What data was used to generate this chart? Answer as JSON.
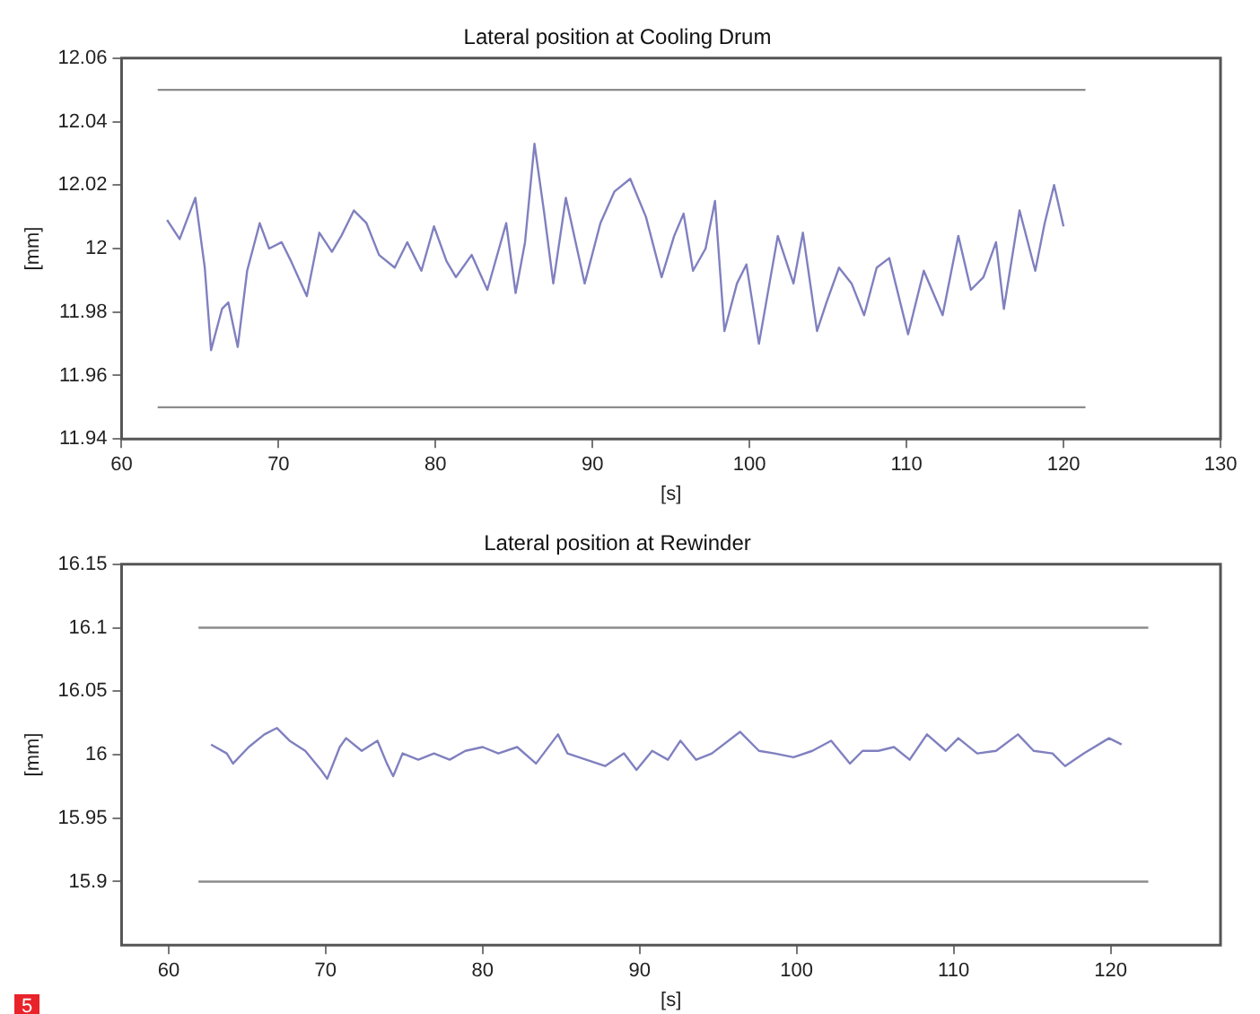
{
  "chart_data": [
    {
      "type": "line",
      "title": "Lateral position at Cooling Drum",
      "xlabel": "[s]",
      "ylabel": "[mm]",
      "xlim": [
        60,
        130
      ],
      "xticks": [
        60,
        70,
        80,
        90,
        100,
        110,
        120,
        130
      ],
      "ylim": [
        11.94,
        12.06
      ],
      "yticks": [
        11.94,
        11.96,
        11.98,
        12,
        12.02,
        12.04,
        12.06
      ],
      "grid": false,
      "legend": false,
      "marker": "none",
      "line_style": "solid",
      "series": [
        {
          "color": "#8080c0",
          "x": [
            62.9,
            63.7,
            64.7,
            65.3,
            65.7,
            66.4,
            66.8,
            67.4,
            68.0,
            68.8,
            69.4,
            70.2,
            70.8,
            71.8,
            72.6,
            73.4,
            74.0,
            74.8,
            75.6,
            76.4,
            77.4,
            78.2,
            79.1,
            79.9,
            80.7,
            81.3,
            82.3,
            83.3,
            84.5,
            85.1,
            85.7,
            86.3,
            86.9,
            87.5,
            88.3,
            89.5,
            90.5,
            91.4,
            92.4,
            93.4,
            94.4,
            95.2,
            95.8,
            96.4,
            97.2,
            97.8,
            98.4,
            99.2,
            99.8,
            100.6,
            101.8,
            102.8,
            103.4,
            104.3,
            104.9,
            105.7,
            106.5,
            107.3,
            108.1,
            108.9,
            110.1,
            111.1,
            112.3,
            113.3,
            114.1,
            114.9,
            115.7,
            116.2,
            117.2,
            118.2,
            118.8,
            119.4,
            120.0
          ],
          "values": [
            12.009,
            12.003,
            12.016,
            11.994,
            11.968,
            11.981,
            11.983,
            11.969,
            11.993,
            12.008,
            12.0,
            12.002,
            11.996,
            11.985,
            12.005,
            11.999,
            12.004,
            12.012,
            12.008,
            11.998,
            11.994,
            12.002,
            11.993,
            12.007,
            11.996,
            11.991,
            11.998,
            11.987,
            12.008,
            11.986,
            12.002,
            12.033,
            12.012,
            11.989,
            12.016,
            11.989,
            12.008,
            12.018,
            12.022,
            12.01,
            11.991,
            12.004,
            12.011,
            11.993,
            12.0,
            12.015,
            11.974,
            11.989,
            11.995,
            11.97,
            12.004,
            11.989,
            12.005,
            11.974,
            11.983,
            11.994,
            11.989,
            11.979,
            11.994,
            11.997,
            11.973,
            11.993,
            11.979,
            12.004,
            11.987,
            11.991,
            12.002,
            11.981,
            12.012,
            11.993,
            12.008,
            12.02,
            12.007
          ]
        },
        {
          "color": "#8c8c8c",
          "x": [
            62.3,
            121.4
          ],
          "values": [
            12.05,
            12.05
          ]
        },
        {
          "color": "#8c8c8c",
          "x": [
            62.3,
            121.4
          ],
          "values": [
            11.95,
            11.95
          ]
        }
      ]
    },
    {
      "type": "line",
      "title": "Lateral position at Rewinder",
      "xlabel": "[s]",
      "ylabel": "[mm]",
      "xlim": [
        57,
        127
      ],
      "xticks": [
        60,
        70,
        80,
        90,
        100,
        110,
        120
      ],
      "ylim": [
        15.85,
        16.15
      ],
      "yticks": [
        15.9,
        15.95,
        16,
        16.05,
        16.1,
        16.15
      ],
      "grid": false,
      "legend": false,
      "marker": "none",
      "line_style": "solid",
      "annotations": [
        "5"
      ],
      "series": [
        {
          "color": "#8080c0",
          "x": [
            62.7,
            63.7,
            64.1,
            65.1,
            66.1,
            66.9,
            67.7,
            68.7,
            69.7,
            70.1,
            70.9,
            71.3,
            72.3,
            73.3,
            73.9,
            74.3,
            74.9,
            75.9,
            76.9,
            77.9,
            78.9,
            80.0,
            81.0,
            82.2,
            83.4,
            84.8,
            85.4,
            86.6,
            87.8,
            89.0,
            89.8,
            90.8,
            91.8,
            92.6,
            93.6,
            94.6,
            96.4,
            97.6,
            98.6,
            99.8,
            101.0,
            102.2,
            103.4,
            104.2,
            105.2,
            106.2,
            107.2,
            108.3,
            109.5,
            110.3,
            111.5,
            112.7,
            114.1,
            115.1,
            116.3,
            117.1,
            118.3,
            119.9,
            120.7
          ],
          "values": [
            16.008,
            16.001,
            15.993,
            16.006,
            16.016,
            16.021,
            16.011,
            16.003,
            15.988,
            15.981,
            16.006,
            16.013,
            16.003,
            16.011,
            15.993,
            15.983,
            16.001,
            15.996,
            16.001,
            15.996,
            16.003,
            16.006,
            16.001,
            16.006,
            15.993,
            16.016,
            16.001,
            15.996,
            15.991,
            16.001,
            15.988,
            16.003,
            15.996,
            16.011,
            15.996,
            16.001,
            16.018,
            16.003,
            16.001,
            15.998,
            16.003,
            16.011,
            15.993,
            16.003,
            16.003,
            16.006,
            15.996,
            16.016,
            16.003,
            16.013,
            16.001,
            16.003,
            16.016,
            16.003,
            16.001,
            15.991,
            16.001,
            16.013,
            16.008
          ]
        },
        {
          "color": "#8c8c8c",
          "x": [
            61.9,
            122.4
          ],
          "values": [
            16.1,
            16.1
          ]
        },
        {
          "color": "#8c8c8c",
          "x": [
            61.9,
            122.4
          ],
          "values": [
            15.9,
            15.9
          ]
        }
      ]
    }
  ]
}
